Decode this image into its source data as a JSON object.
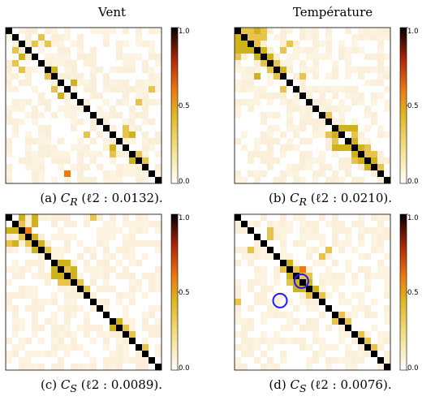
{
  "column_titles": [
    "Vent",
    "Température"
  ],
  "colors": {
    "empty": "#ffffff",
    "low": "#faf0d9",
    "medium": "#e8c44a",
    "mustard": "#d0b21a",
    "orange": "#f07a10",
    "red": "#c0280c",
    "diag": "#000000",
    "highlight_circle": "#1a1aff"
  },
  "chart_data": [
    {
      "type": "heatmap",
      "panel": "(a)",
      "caption": "(a) C_R (ℓ2 : 0.0132).",
      "caption_parts": {
        "label": "(a) ",
        "sym": "C",
        "sub": "R",
        "rest": " (ℓ2 : 0.0132)."
      },
      "colorbar_ticks": [
        "0.0",
        "0.5",
        "1.0"
      ],
      "size": 24,
      "diagonal": 1.0,
      "offdiag": [
        [
          2,
          4,
          0.5
        ],
        [
          3,
          1,
          0.3
        ],
        [
          5,
          1,
          0.35
        ],
        [
          6,
          2,
          0.35
        ],
        [
          7,
          6,
          0.55
        ],
        [
          9,
          7,
          0.3
        ],
        [
          10,
          8,
          0.45
        ],
        [
          22,
          9,
          0.6
        ],
        [
          18,
          16,
          0.4
        ],
        [
          19,
          16,
          0.5
        ],
        [
          19,
          20,
          0.5
        ],
        [
          11,
          20,
          0.3
        ],
        [
          4,
          17,
          0.25
        ],
        [
          13,
          20,
          0.25
        ],
        [
          16,
          12,
          0.3
        ],
        [
          20,
          21,
          0.3
        ],
        [
          21,
          5,
          0.25
        ],
        [
          23,
          4,
          0.25
        ],
        [
          8,
          3,
          0.25
        ],
        [
          15,
          18,
          0.3
        ]
      ]
    },
    {
      "type": "heatmap",
      "panel": "(b)",
      "caption": "(b) C_R (ℓ2 : 0.0210).",
      "caption_parts": {
        "label": "(b) ",
        "sym": "C",
        "sub": "R",
        "rest": " (ℓ2 : 0.0210)."
      },
      "colorbar_ticks": [
        "0.0",
        "0.5",
        "1.0"
      ],
      "size": 24,
      "diagonal": 1.0,
      "offdiag": [
        [
          0,
          1,
          0.5
        ],
        [
          0,
          2,
          0.5
        ],
        [
          0,
          3,
          0.45
        ],
        [
          1,
          2,
          0.55
        ],
        [
          1,
          3,
          0.5
        ],
        [
          2,
          3,
          0.5
        ],
        [
          0,
          4,
          0.35
        ],
        [
          1,
          4,
          0.3
        ],
        [
          3,
          4,
          0.45
        ],
        [
          4,
          5,
          0.4
        ],
        [
          5,
          6,
          0.35
        ],
        [
          3,
          7,
          0.5
        ],
        [
          6,
          7,
          0.4
        ],
        [
          2,
          8,
          0.3
        ],
        [
          9,
          7,
          0.3
        ],
        [
          12,
          9,
          0.25
        ],
        [
          11,
          13,
          0.25
        ],
        [
          15,
          16,
          0.45
        ],
        [
          15,
          17,
          0.4
        ],
        [
          15,
          18,
          0.45
        ],
        [
          16,
          18,
          0.5
        ],
        [
          17,
          18,
          0.45
        ],
        [
          18,
          19,
          0.45
        ],
        [
          19,
          20,
          0.5
        ],
        [
          20,
          21,
          0.45
        ],
        [
          19,
          21,
          0.3
        ],
        [
          21,
          22,
          0.3
        ],
        [
          18,
          20,
          0.35
        ],
        [
          7,
          10,
          0.3
        ],
        [
          13,
          14,
          0.3
        ],
        [
          16,
          14,
          0.3
        ],
        [
          4,
          16,
          0.25
        ],
        [
          6,
          20,
          0.25
        ],
        [
          0,
          22,
          0.25
        ]
      ]
    },
    {
      "type": "heatmap",
      "panel": "(c)",
      "caption": "(c) C_S (ℓ2 : 0.0089).",
      "caption_parts": {
        "label": "(c) ",
        "sym": "C",
        "sub": "S",
        "rest": " (ℓ2 : 0.0089)."
      },
      "colorbar_ticks": [
        "0.0",
        "0.5",
        "1.0"
      ],
      "size": 24,
      "diagonal": 1.0,
      "offdiag": [
        [
          0,
          2,
          0.45
        ],
        [
          1,
          2,
          0.5
        ],
        [
          2,
          3,
          0.6
        ],
        [
          3,
          4,
          0.4
        ],
        [
          1,
          4,
          0.45
        ],
        [
          0,
          4,
          0.4
        ],
        [
          4,
          5,
          0.45
        ],
        [
          5,
          6,
          0.3
        ],
        [
          7,
          8,
          0.45
        ],
        [
          8,
          9,
          0.5
        ],
        [
          7,
          9,
          0.45
        ],
        [
          8,
          10,
          0.4
        ],
        [
          9,
          10,
          0.4
        ],
        [
          10,
          11,
          0.3
        ],
        [
          11,
          12,
          0.3
        ],
        [
          13,
          14,
          0.25
        ],
        [
          16,
          17,
          0.45
        ],
        [
          17,
          18,
          0.3
        ],
        [
          18,
          19,
          0.3
        ],
        [
          20,
          21,
          0.3
        ],
        [
          14,
          4,
          0.25
        ],
        [
          0,
          13,
          0.3
        ],
        [
          19,
          3,
          0.25
        ],
        [
          12,
          1,
          0.25
        ]
      ]
    },
    {
      "type": "heatmap",
      "panel": "(d)",
      "caption": "(d) C_S (ℓ2 : 0.0076).",
      "caption_parts": {
        "label": "(d) ",
        "sym": "C",
        "sub": "S",
        "rest": " (ℓ2 : 0.0076)."
      },
      "colorbar_ticks": [
        "0.0",
        "0.5",
        "1.0"
      ],
      "size": 24,
      "diagonal": 1.0,
      "offdiag": [
        [
          8,
          9,
          0.55
        ],
        [
          9,
          10,
          0.5
        ],
        [
          8,
          10,
          0.6
        ],
        [
          10,
          11,
          0.45
        ],
        [
          9,
          11,
          0.5
        ],
        [
          7,
          8,
          0.4
        ],
        [
          11,
          12,
          0.4
        ],
        [
          12,
          13,
          0.3
        ],
        [
          2,
          5,
          0.35
        ],
        [
          3,
          5,
          0.3
        ],
        [
          6,
          13,
          0.3
        ],
        [
          5,
          14,
          0.3
        ],
        [
          15,
          16,
          0.35
        ],
        [
          16,
          17,
          0.3
        ],
        [
          18,
          19,
          0.3
        ],
        [
          19,
          20,
          0.3
        ],
        [
          20,
          21,
          0.3
        ],
        [
          1,
          19,
          0.25
        ],
        [
          2,
          20,
          0.25
        ],
        [
          22,
          3,
          0.25
        ],
        [
          13,
          0,
          0.3
        ]
      ],
      "highlight_circles": [
        [
          9.8,
          9.8
        ],
        [
          6.5,
          12.8
        ]
      ]
    }
  ]
}
